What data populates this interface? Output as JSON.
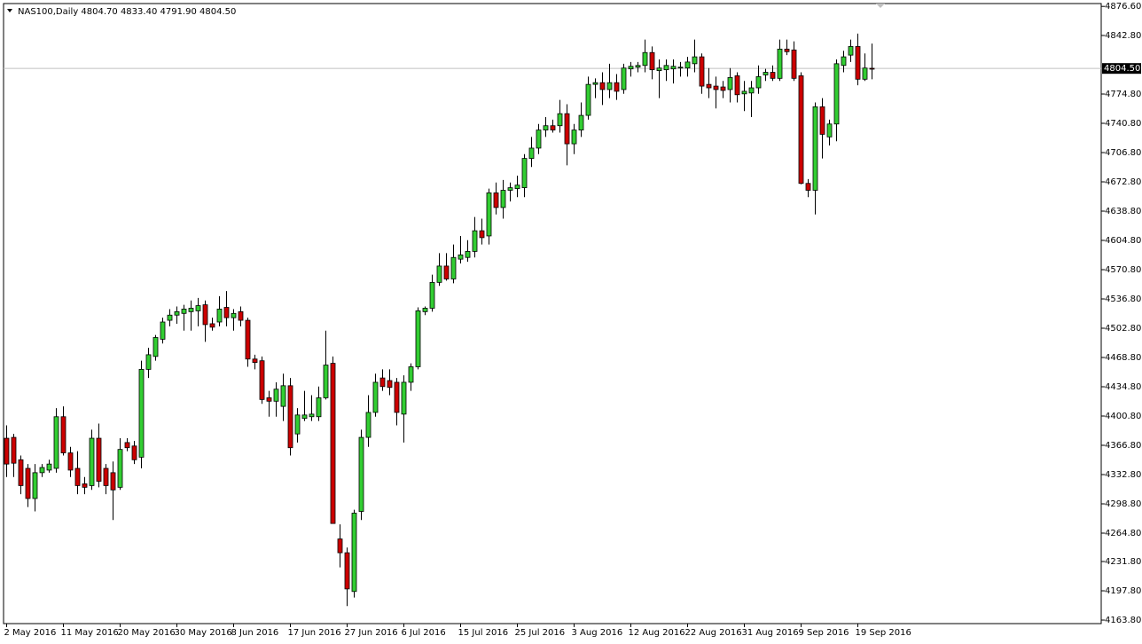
{
  "chart_data": {
    "type": "candlestick",
    "title": "NAS100,Daily  4804.70 4833.40 4791.90 4804.50",
    "categories": [
      "2 May 2016",
      null,
      null,
      null,
      null,
      null,
      null,
      null,
      "11 May 2016",
      null,
      null,
      null,
      null,
      null,
      null,
      null,
      "20 May 2016",
      null,
      null,
      null,
      null,
      null,
      null,
      null,
      "30 May 2016",
      null,
      null,
      null,
      null,
      null,
      null,
      null,
      "8 Jun 2016",
      null,
      null,
      null,
      null,
      null,
      null,
      null,
      "17 Jun 2016",
      null,
      null,
      null,
      null,
      null,
      null,
      null,
      "27 Jun 2016",
      null,
      null,
      null,
      null,
      null,
      null,
      null,
      "6 Jul 2016",
      null,
      null,
      null,
      null,
      null,
      null,
      null,
      "15 Jul 2016",
      null,
      null,
      null,
      null,
      null,
      null,
      null,
      "25 Jul 2016",
      null,
      null,
      null,
      null,
      null,
      null,
      null,
      "3 Aug 2016",
      null,
      null,
      null,
      null,
      null,
      null,
      null,
      "12 Aug 2016",
      null,
      null,
      null,
      null,
      null,
      null,
      null,
      "22 Aug 2016",
      null,
      null,
      null,
      null,
      null,
      null,
      null,
      "31 Aug 2016",
      null,
      null,
      null,
      null,
      null,
      null,
      null,
      "9 Sep 2016",
      null,
      null,
      null,
      null,
      null,
      null,
      null,
      "19 Sep 2016",
      null,
      null
    ],
    "open": [
      4375,
      4376,
      4350,
      4340,
      4305,
      4335,
      4338,
      4340,
      4400,
      4358,
      4340,
      4322,
      4320,
      4375,
      4340,
      4335,
      4318,
      4370,
      4366,
      4353,
      4455,
      4470,
      4490,
      4512,
      4518,
      4520,
      4522,
      4523,
      4530,
      4508,
      4510,
      4527,
      4515,
      4522,
      4512,
      4467,
      4465,
      4422,
      4418,
      4412,
      4436,
      4380,
      4398,
      4400,
      4400,
      4422,
      4462,
      4258,
      4242,
      4197,
      4290,
      4376,
      4405,
      4445,
      4442,
      4440,
      4403,
      4440,
      4458,
      4522,
      4526,
      4556,
      4575,
      4560,
      4583,
      4585,
      4592,
      4616,
      4610,
      4660,
      4643,
      4663,
      4665,
      4666,
      4700,
      4712,
      4733,
      4738,
      4738,
      4752,
      4717,
      4733,
      4750,
      4786,
      4788,
      4780,
      4788,
      4780,
      4804,
      4806,
      4808,
      4823,
      4802,
      4803,
      4804,
      4805,
      4805,
      4810,
      4818,
      4786,
      4784,
      4783,
      4780,
      4796,
      4775,
      4776,
      4782,
      4797,
      4800,
      4793,
      4827,
      4826,
      4796,
      4671,
      4663,
      4760,
      4725,
      4740,
      4808,
      4820,
      4830,
      4792,
      4804.7
    ],
    "high": [
      4390,
      4380,
      4355,
      4345,
      4345,
      4345,
      4350,
      4410,
      4412,
      4365,
      4360,
      4330,
      4385,
      4392,
      4345,
      4348,
      4375,
      4375,
      4372,
      4465,
      4480,
      4495,
      4515,
      4525,
      4528,
      4530,
      4535,
      4538,
      4535,
      4515,
      4540,
      4546,
      4525,
      4528,
      4515,
      4472,
      4470,
      4430,
      4440,
      4450,
      4445,
      4410,
      4430,
      4425,
      4435,
      4500,
      4470,
      4275,
      4248,
      4292,
      4385,
      4425,
      4450,
      4455,
      4455,
      4445,
      4448,
      4462,
      4527,
      4528,
      4565,
      4590,
      4590,
      4600,
      4610,
      4605,
      4632,
      4630,
      4665,
      4672,
      4675,
      4672,
      4680,
      4705,
      4725,
      4740,
      4748,
      4745,
      4768,
      4763,
      4740,
      4765,
      4795,
      4793,
      4800,
      4810,
      4798,
      4810,
      4812,
      4812,
      4838,
      4830,
      4815,
      4815,
      4815,
      4812,
      4818,
      4838,
      4822,
      4805,
      4795,
      4790,
      4805,
      4800,
      4790,
      4790,
      4808,
      4804,
      4808,
      4838,
      4838,
      4836,
      4800,
      4676,
      4765,
      4770,
      4745,
      4815,
      4825,
      4838,
      4845,
      4822,
      4833.4
    ],
    "low": [
      4330,
      4330,
      4310,
      4295,
      4290,
      4330,
      4335,
      4335,
      4355,
      4330,
      4310,
      4310,
      4315,
      4318,
      4310,
      4280,
      4315,
      4360,
      4345,
      4340,
      4445,
      4465,
      4485,
      4505,
      4508,
      4500,
      4500,
      4505,
      4487,
      4500,
      4505,
      4505,
      4500,
      4505,
      4458,
      4455,
      4415,
      4400,
      4400,
      4395,
      4355,
      4370,
      4395,
      4395,
      4395,
      4420,
      4276,
      4225,
      4180,
      4190,
      4280,
      4365,
      4400,
      4430,
      4425,
      4390,
      4370,
      4430,
      4455,
      4518,
      4522,
      4552,
      4558,
      4555,
      4578,
      4580,
      4585,
      4600,
      4600,
      4635,
      4630,
      4650,
      4655,
      4655,
      4690,
      4705,
      4725,
      4730,
      4730,
      4692,
      4705,
      4725,
      4745,
      4770,
      4762,
      4770,
      4768,
      4775,
      4795,
      4800,
      4800,
      4792,
      4770,
      4790,
      4787,
      4795,
      4795,
      4800,
      4775,
      4770,
      4758,
      4770,
      4765,
      4765,
      4755,
      4748,
      4775,
      4790,
      4790,
      4790,
      4820,
      4790,
      4670,
      4655,
      4635,
      4700,
      4715,
      4720,
      4800,
      4812,
      4785,
      4790,
      4791.9
    ],
    "close": [
      4345,
      4346,
      4320,
      4305,
      4335,
      4341,
      4345,
      4400,
      4358,
      4338,
      4320,
      4318,
      4375,
      4325,
      4320,
      4315,
      4362,
      4364,
      4350,
      4455,
      4472,
      4492,
      4510,
      4518,
      4522,
      4525,
      4526,
      4529,
      4507,
      4504,
      4525,
      4515,
      4520,
      4512,
      4467,
      4463,
      4420,
      4418,
      4432,
      4436,
      4364,
      4402,
      4402,
      4403,
      4422,
      4460,
      4276,
      4242,
      4200,
      4288,
      4376,
      4405,
      4440,
      4435,
      4434,
      4405,
      4440,
      4458,
      4523,
      4526,
      4556,
      4575,
      4560,
      4585,
      4588,
      4592,
      4616,
      4608,
      4660,
      4643,
      4663,
      4666,
      4669,
      4700,
      4712,
      4733,
      4738,
      4733,
      4752,
      4717,
      4733,
      4750,
      4786,
      4788,
      4780,
      4788,
      4778,
      4805,
      4807,
      4808,
      4823,
      4803,
      4805,
      4808,
      4807,
      4806,
      4812,
      4818,
      4784,
      4782,
      4780,
      4779,
      4794,
      4774,
      4778,
      4782,
      4795,
      4800,
      4793,
      4827,
      4824,
      4793,
      4671,
      4663,
      4760,
      4728,
      4740,
      4810,
      4818,
      4830,
      4792,
      4805,
      4804.5
    ],
    "up_color": "#32cd32",
    "down_color": "#cc0000",
    "current_price": {
      "value": 4804.5,
      "label": "4804.50"
    },
    "ylim": [
      4159.7,
      4879.9
    ],
    "yticks": [
      {
        "value": 4876.6,
        "label": "4876.60"
      },
      {
        "value": 4842.8,
        "label": "4842.80"
      },
      {
        "value": 4774.8,
        "label": "4774.80"
      },
      {
        "value": 4740.8,
        "label": "4740.80"
      },
      {
        "value": 4706.8,
        "label": "4706.80"
      },
      {
        "value": 4672.8,
        "label": "4672.80"
      },
      {
        "value": 4638.8,
        "label": "4638.80"
      },
      {
        "value": 4604.8,
        "label": "4604.80"
      },
      {
        "value": 4570.8,
        "label": "4570.80"
      },
      {
        "value": 4536.8,
        "label": "4536.80"
      },
      {
        "value": 4502.8,
        "label": "4502.80"
      },
      {
        "value": 4468.8,
        "label": "4468.80"
      },
      {
        "value": 4434.8,
        "label": "4434.80"
      },
      {
        "value": 4400.8,
        "label": "4400.80"
      },
      {
        "value": 4366.8,
        "label": "4366.80"
      },
      {
        "value": 4332.8,
        "label": "4332.80"
      },
      {
        "value": 4298.8,
        "label": "4298.80"
      },
      {
        "value": 4264.8,
        "label": "4264.80"
      },
      {
        "value": 4231.8,
        "label": "4231.80"
      },
      {
        "value": 4197.8,
        "label": "4197.80"
      },
      {
        "value": 4163.8,
        "label": "4163.80"
      }
    ]
  }
}
